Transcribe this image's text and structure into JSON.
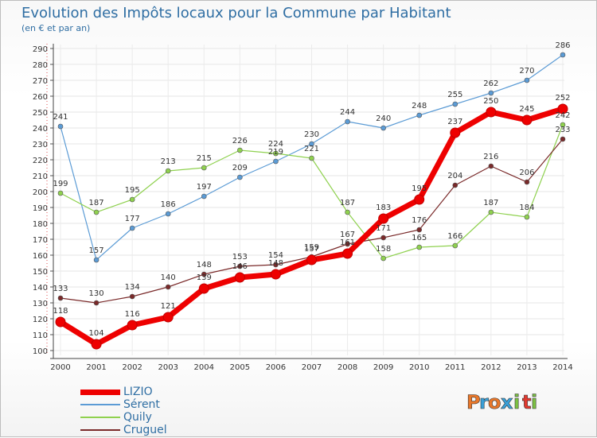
{
  "header": {
    "title": "Evolution des Impôts locaux pour la Commune par Habitant",
    "subtitle": "(en € et par an)"
  },
  "brand": {
    "letters": [
      "P",
      "r",
      "o",
      "x",
      "i",
      "t",
      "i"
    ],
    "colors": [
      "#e9772a",
      "#3aa0d8",
      "#e9772a",
      "#3aa0d8",
      "#7cc242",
      "#e2392f",
      "#7cc242"
    ]
  },
  "chart_data": {
    "type": "line",
    "title": "Evolution des Impôts locaux pour la Commune par Habitant",
    "subtitle": "(en € et par an)",
    "xlabel": "",
    "ylabel": "",
    "x": [
      "2000",
      "2001",
      "2002",
      "2003",
      "2004",
      "2005",
      "2006",
      "2007",
      "2008",
      "2009",
      "2010",
      "2011",
      "2012",
      "2013",
      "2014"
    ],
    "ylim": [
      100,
      290
    ],
    "yticks": [
      100,
      110,
      120,
      130,
      140,
      150,
      160,
      170,
      180,
      190,
      200,
      210,
      220,
      230,
      240,
      250,
      260,
      270,
      280,
      290
    ],
    "grid": true,
    "legend_position": "bottom-left",
    "series": [
      {
        "name": "Sérent",
        "color": "#5b9bd5",
        "label_color": "#333333",
        "width": 1.2,
        "marker": 3,
        "values": [
          241,
          157,
          177,
          186,
          197,
          209,
          219,
          230,
          244,
          240,
          248,
          255,
          262,
          270,
          286
        ],
        "labels": [
          "241",
          "157",
          "177",
          "186",
          "197",
          "209",
          "219",
          "230",
          "244",
          "240",
          "248",
          "255",
          "262",
          "270",
          "286"
        ]
      },
      {
        "name": "Quily",
        "color": "#8fd14f",
        "label_color": "#333333",
        "width": 1.2,
        "marker": 3,
        "values": [
          199,
          187,
          195,
          213,
          215,
          226,
          224,
          221,
          187,
          158,
          165,
          166,
          187,
          184,
          242
        ],
        "labels": [
          "199",
          "187",
          "195",
          "213",
          "215",
          "226",
          "224",
          "221",
          "187",
          "158",
          "165",
          "166",
          "187",
          "184",
          "242"
        ]
      },
      {
        "name": "Cruguel",
        "color": "#7a2a2a",
        "label_color": "#333333",
        "width": 1.2,
        "marker": 3,
        "values": [
          133,
          130,
          134,
          140,
          148,
          153,
          154,
          159,
          167,
          171,
          176,
          204,
          216,
          206,
          233
        ],
        "labels": [
          "133",
          "130",
          "134",
          "140",
          "148",
          "153",
          "154",
          "159",
          "167",
          "171",
          "176",
          "204",
          "216",
          "206",
          "233"
        ]
      },
      {
        "name": "LIZIO",
        "color": "#ee0000",
        "label_color": "#333333",
        "width": 7,
        "marker": 6,
        "values": [
          118,
          104,
          116,
          121,
          139,
          146,
          148,
          157,
          161,
          183,
          195,
          237,
          250,
          245,
          252
        ],
        "labels": [
          "118",
          "104",
          "116",
          "121",
          "139",
          "146",
          "148",
          "157",
          "161",
          "183",
          "195",
          "237",
          "250",
          "245",
          "252"
        ]
      }
    ],
    "legend": [
      {
        "name": "LIZIO",
        "color": "#ee0000",
        "width": 7
      },
      {
        "name": "Sérent",
        "color": "#5b9bd5",
        "width": 2
      },
      {
        "name": "Quily",
        "color": "#8fd14f",
        "width": 2
      },
      {
        "name": "Cruguel",
        "color": "#7a2a2a",
        "width": 2
      }
    ]
  }
}
